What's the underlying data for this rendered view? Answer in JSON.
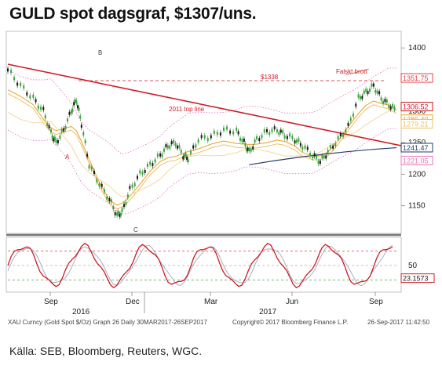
{
  "title": "GULD spot dagsgraf, $1307/uns.",
  "source": "Källa: SEB, Bloomberg, Reuters, WGC.",
  "footer": {
    "left": "XAU Curncy (Gold Spot  $/Oz) Graph 26  Daily 30MAR2017-26SEP2017",
    "center": "Copyright© 2017 Bloomberg Finance L.P.",
    "right": "26-Sep-2017 11:42:50"
  },
  "chart_data": [
    {
      "type": "line",
      "panel": "price",
      "y_ticks": [
        1150,
        1200,
        1250,
        1300,
        1350,
        1400
      ],
      "ylim": [
        1110,
        1420
      ],
      "x_ticks": [
        "Sep",
        "Dec",
        "Mar",
        "Jun",
        "Sep"
      ],
      "x_years": [
        "2016",
        "2017"
      ],
      "price_points": [
        [
          0,
          1365
        ],
        [
          10,
          1340
        ],
        [
          20,
          1320
        ],
        [
          28,
          1300
        ],
        [
          34,
          1265
        ],
        [
          38,
          1250
        ],
        [
          44,
          1270
        ],
        [
          50,
          1300
        ],
        [
          54,
          1318
        ],
        [
          58,
          1280
        ],
        [
          64,
          1215
        ],
        [
          72,
          1185
        ],
        [
          80,
          1160
        ],
        [
          86,
          1135
        ],
        [
          90,
          1140
        ],
        [
          96,
          1175
        ],
        [
          104,
          1200
        ],
        [
          112,
          1215
        ],
        [
          120,
          1230
        ],
        [
          126,
          1245
        ],
        [
          132,
          1250
        ],
        [
          138,
          1230
        ],
        [
          142,
          1225
        ],
        [
          150,
          1255
        ],
        [
          160,
          1260
        ],
        [
          170,
          1270
        ],
        [
          180,
          1268
        ],
        [
          186,
          1250
        ],
        [
          190,
          1235
        ],
        [
          196,
          1255
        ],
        [
          204,
          1268
        ],
        [
          212,
          1270
        ],
        [
          218,
          1262
        ],
        [
          226,
          1255
        ],
        [
          232,
          1245
        ],
        [
          240,
          1230
        ],
        [
          246,
          1220
        ],
        [
          252,
          1235
        ],
        [
          260,
          1255
        ],
        [
          268,
          1275
        ],
        [
          276,
          1320
        ],
        [
          282,
          1330
        ],
        [
          288,
          1340
        ],
        [
          294,
          1320
        ],
        [
          300,
          1310
        ],
        [
          306,
          1300
        ]
      ],
      "levels": [
        {
          "label": "1351.75",
          "value": 1351.75,
          "color": "#e8414a"
        },
        {
          "label": "1306.52",
          "value": 1306.52,
          "color": "#d01b24"
        },
        {
          "label": "1286.40",
          "value": 1286.4,
          "color": "#e8a020"
        },
        {
          "label": "1279.21",
          "value": 1279.21,
          "color": "#f0c060"
        },
        {
          "label": "1241.47",
          "value": 1241.47,
          "color": "#223a6b"
        },
        {
          "label": "1221.05",
          "value": 1221.05,
          "color": "#e874b8"
        }
      ],
      "annotations": {
        "level_1338": "$1338",
        "false_break": "Falskt brott",
        "trendline": "2011 top line",
        "point_a": "A",
        "point_b": "B",
        "point_c": "C"
      }
    },
    {
      "type": "line",
      "panel": "oscillator",
      "y_ticks": [
        50
      ],
      "ylim": [
        0,
        100
      ],
      "levels": [
        {
          "label": "23.1573",
          "value": 23.1573,
          "color": "#d01b24"
        }
      ],
      "reference_lines": [
        80,
        50,
        20
      ]
    }
  ]
}
